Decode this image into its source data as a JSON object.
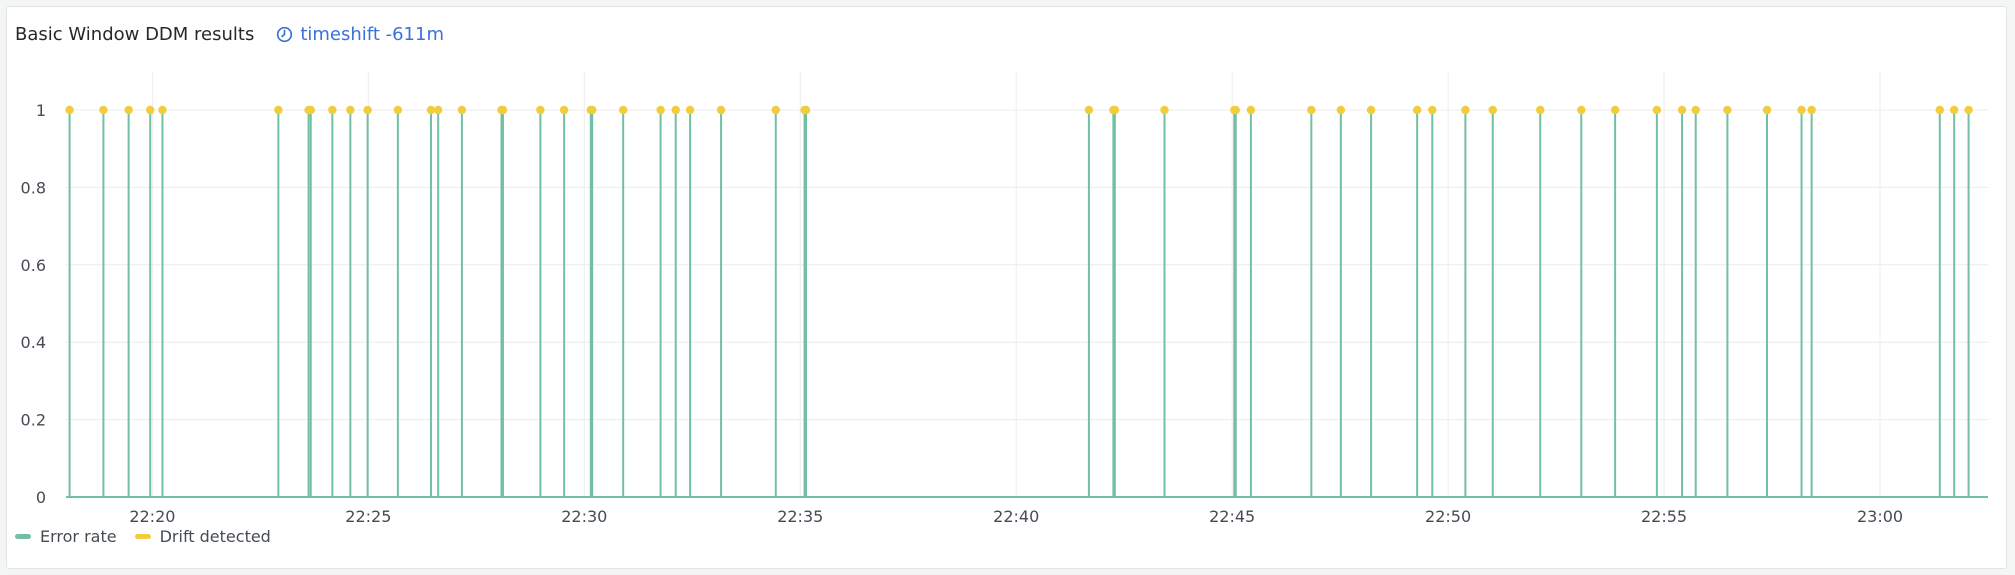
{
  "panel": {
    "title": "Basic Window DDM results",
    "timeshift_label": "timeshift -611m"
  },
  "colors": {
    "error_rate": "#73bfa4",
    "drift_detected": "#f2cc3c",
    "timeshift": "#3d71d9",
    "grid": "#ececec"
  },
  "icons": {
    "timeshift": "clock-icon"
  },
  "chart_data": {
    "type": "line",
    "title": "Basic Window DDM results",
    "xlabel": "",
    "ylabel": "",
    "x_axis": {
      "start": "22:18:00",
      "end": "23:02:30",
      "tick_labels": [
        "22:20",
        "22:25",
        "22:30",
        "22:35",
        "22:40",
        "22:45",
        "22:50",
        "22:55",
        "23:00"
      ]
    },
    "y_axis": {
      "ylim": [
        0,
        1
      ],
      "tick_labels": [
        "0",
        "0.2",
        "0.4",
        "0.6",
        "0.8",
        "1"
      ]
    },
    "grid": true,
    "legend_position": "bottom-left",
    "series": [
      {
        "name": "Error rate",
        "type": "line",
        "baseline": 0,
        "spike_value": 1,
        "spike_times": [
          "22:18:05",
          "22:18:52",
          "22:19:27",
          "22:19:57",
          "22:20:14",
          "22:22:55",
          "22:23:37",
          "22:23:40",
          "22:24:10",
          "22:24:35",
          "22:24:59",
          "22:25:41",
          "22:26:27",
          "22:26:37",
          "22:27:10",
          "22:28:05",
          "22:28:07",
          "22:28:59",
          "22:29:32",
          "22:30:09",
          "22:30:11",
          "22:30:54",
          "22:31:46",
          "22:32:07",
          "22:32:27",
          "22:33:10",
          "22:34:26",
          "22:35:06",
          "22:35:08",
          "22:41:41",
          "22:42:15",
          "22:42:17",
          "22:43:26",
          "22:45:03",
          "22:45:05",
          "22:45:26",
          "22:46:50",
          "22:47:31",
          "22:48:13",
          "22:49:17",
          "22:49:38",
          "22:50:24",
          "22:51:02",
          "22:52:08",
          "22:53:05",
          "22:53:52",
          "22:54:50",
          "22:55:25",
          "22:55:44",
          "22:56:28",
          "22:57:23",
          "22:58:11",
          "22:58:25",
          "23:01:23",
          "23:01:43",
          "23:02:03"
        ]
      },
      {
        "name": "Drift detected",
        "type": "scatter",
        "value": 1,
        "times": [
          "22:18:05",
          "22:18:52",
          "22:19:27",
          "22:19:57",
          "22:20:14",
          "22:22:55",
          "22:23:37",
          "22:23:40",
          "22:24:10",
          "22:24:35",
          "22:24:59",
          "22:25:41",
          "22:26:27",
          "22:26:37",
          "22:27:10",
          "22:28:05",
          "22:28:07",
          "22:28:59",
          "22:29:32",
          "22:30:09",
          "22:30:11",
          "22:30:54",
          "22:31:46",
          "22:32:07",
          "22:32:27",
          "22:33:10",
          "22:34:26",
          "22:35:06",
          "22:35:08",
          "22:41:41",
          "22:42:15",
          "22:42:17",
          "22:43:26",
          "22:45:03",
          "22:45:05",
          "22:45:26",
          "22:46:50",
          "22:47:31",
          "22:48:13",
          "22:49:17",
          "22:49:38",
          "22:50:24",
          "22:51:02",
          "22:52:08",
          "22:53:05",
          "22:53:52",
          "22:54:50",
          "22:55:25",
          "22:55:44",
          "22:56:28",
          "22:57:23",
          "22:58:11",
          "22:58:25",
          "23:01:23",
          "23:01:43",
          "23:02:03"
        ]
      }
    ]
  }
}
